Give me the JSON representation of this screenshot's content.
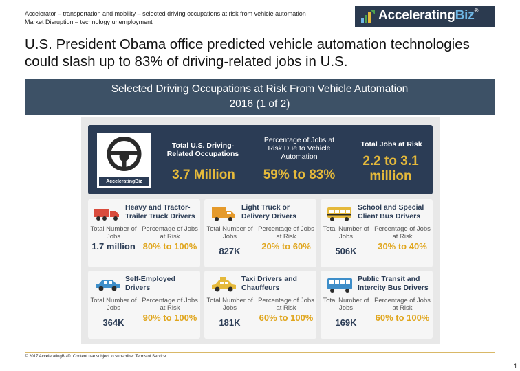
{
  "header": {
    "line1": "Accelerator – transportation and mobility – selected driving occupations at risk from vehicle automation",
    "line2": "Market Disruption – technology unemployment",
    "logo_main": "Accelerating",
    "logo_accent": "Biz",
    "logo_mark": "®"
  },
  "title": "U.S. President Obama office predicted vehicle automation technologies could slash up to 83% of driving-related jobs in U.S.",
  "banner": {
    "line1": "Selected Driving Occupations at Risk From Vehicle Automation",
    "line2": "2016 (1 of 2)"
  },
  "infographic": {
    "logo_badge": "AcceleratingBiz",
    "stats": [
      {
        "label": "Total U.S. Driving-Related Occupations",
        "value": "3.7 Million"
      },
      {
        "label": "Percentage of Jobs at Risk Due to Vehicle Automation",
        "value": "59% to 83%"
      },
      {
        "label": "Total Jobs at Risk",
        "value": "2.2 to 3.1 million"
      }
    ],
    "col_jobs": "Total Number of Jobs",
    "col_risk": "Percentage of Jobs at Risk",
    "occupations": [
      {
        "title": "Heavy and Tractor-Trailer Truck Drivers",
        "jobs": "1.7 million",
        "risk": "80% to 100%",
        "icon": "semi-truck-icon"
      },
      {
        "title": "Light Truck or Delivery Drivers",
        "jobs": "827K",
        "risk": "20% to 60%",
        "icon": "delivery-truck-icon"
      },
      {
        "title": "School and Special Client Bus Drivers",
        "jobs": "506K",
        "risk": "30% to 40%",
        "icon": "school-bus-icon"
      },
      {
        "title": "Self-Employed Drivers",
        "jobs": "364K",
        "risk": "90% to 100%",
        "icon": "car-icon"
      },
      {
        "title": "Taxi Drivers and Chauffeurs",
        "jobs": "181K",
        "risk": "60% to 100%",
        "icon": "taxi-icon"
      },
      {
        "title": "Public Transit and Intercity Bus Drivers",
        "jobs": "169K",
        "risk": "60% to 100%",
        "icon": "transit-bus-icon"
      }
    ]
  },
  "footer": "© 2017 AcceleratingBiz®. Content use subject to subscriber Terms of Service.",
  "page_number": "1",
  "colors": {
    "navy": "#2b3c55",
    "gold": "#e5b93b",
    "banner": "#3d5166"
  }
}
